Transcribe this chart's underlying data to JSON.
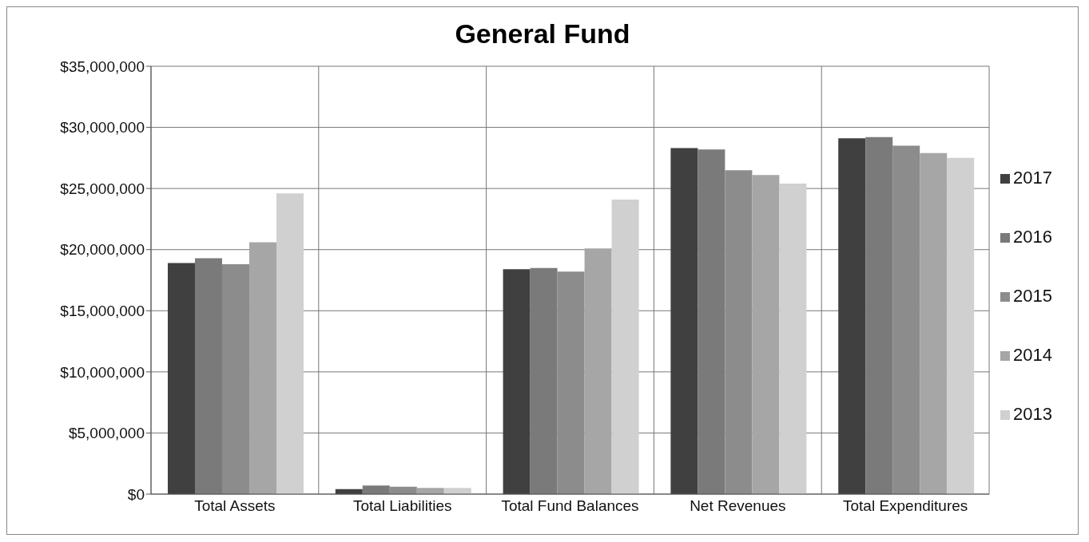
{
  "chart_data": {
    "type": "bar",
    "title": "General Fund",
    "categories": [
      "Total Assets",
      "Total Liabilities",
      "Total Fund Balances",
      "Net Revenues",
      "Total Expenditures"
    ],
    "series": [
      {
        "name": "2017",
        "color": "#404040",
        "values": [
          18900000,
          400000,
          18400000,
          28300000,
          29100000
        ]
      },
      {
        "name": "2016",
        "color": "#7a7a7a",
        "values": [
          19300000,
          700000,
          18500000,
          28200000,
          29200000
        ]
      },
      {
        "name": "2015",
        "color": "#8c8c8c",
        "values": [
          18800000,
          600000,
          18200000,
          26500000,
          28500000
        ]
      },
      {
        "name": "2014",
        "color": "#a6a6a6",
        "values": [
          20600000,
          500000,
          20100000,
          26100000,
          27900000
        ]
      },
      {
        "name": "2013",
        "color": "#d0d0d0",
        "values": [
          24600000,
          500000,
          24100000,
          25400000,
          27500000
        ]
      }
    ],
    "ylim": [
      0,
      35000000
    ],
    "yticks": [
      {
        "value": 0,
        "label": "$0"
      },
      {
        "value": 5000000,
        "label": "$5,000,000"
      },
      {
        "value": 10000000,
        "label": "$10,000,000"
      },
      {
        "value": 15000000,
        "label": "$15,000,000"
      },
      {
        "value": 20000000,
        "label": "$20,000,000"
      },
      {
        "value": 25000000,
        "label": "$25,000,000"
      },
      {
        "value": 30000000,
        "label": "$30,000,000"
      },
      {
        "value": 35000000,
        "label": "$35,000,000"
      }
    ],
    "grid": true,
    "legend": "right"
  }
}
